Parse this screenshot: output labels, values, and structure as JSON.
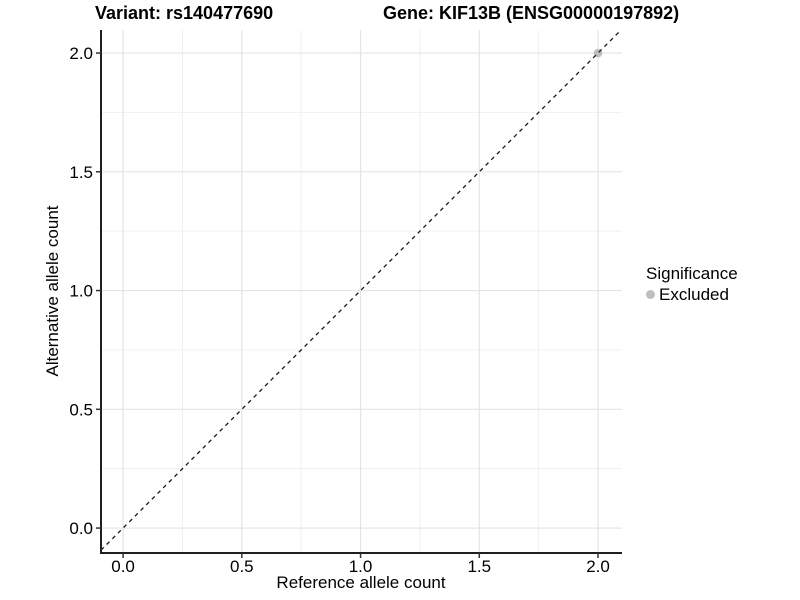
{
  "chart_data": {
    "type": "scatter",
    "titles": {
      "left": "Variant: rs140477690",
      "right": "Gene: KIF13B (ENSG00000197892)"
    },
    "xlabel": "Reference allele count",
    "ylabel": "Alternative allele count",
    "xlim": [
      -0.093,
      2.101
    ],
    "ylim": [
      -0.105,
      2.097
    ],
    "xticks": {
      "values": [
        0,
        0.5,
        1,
        1.5,
        2
      ],
      "labels": [
        "0.0",
        "0.5",
        "1.0",
        "1.5",
        "2.0"
      ]
    },
    "yticks": {
      "values": [
        0,
        0.5,
        1,
        1.5,
        2
      ],
      "labels": [
        "0.0",
        "0.5",
        "1.0",
        "1.5",
        "2.0"
      ]
    },
    "minor_xticks": [
      0.25,
      0.75,
      1.25,
      1.75
    ],
    "minor_yticks": [
      0.25,
      0.75,
      1.25,
      1.75
    ],
    "grid": {
      "on": true,
      "major_color": "#e4e4e4",
      "minor_color": "#f0f0f0",
      "background": "#ffffff"
    },
    "axis": {
      "line_color": "#1f1f1f",
      "tick_color": "#333333",
      "label_color": "#000000"
    },
    "reference_line": {
      "style": "dashed",
      "slope": 1,
      "intercept": 0,
      "color": "#1a1a1a"
    },
    "series": [
      {
        "name": "Excluded",
        "color": "#bebebe",
        "points": [
          {
            "x": 2.0,
            "y": 2.0
          }
        ]
      }
    ],
    "legend": {
      "title": "Significance",
      "position": "right",
      "items": [
        {
          "label": "Excluded",
          "color": "#bebebe"
        }
      ]
    }
  }
}
